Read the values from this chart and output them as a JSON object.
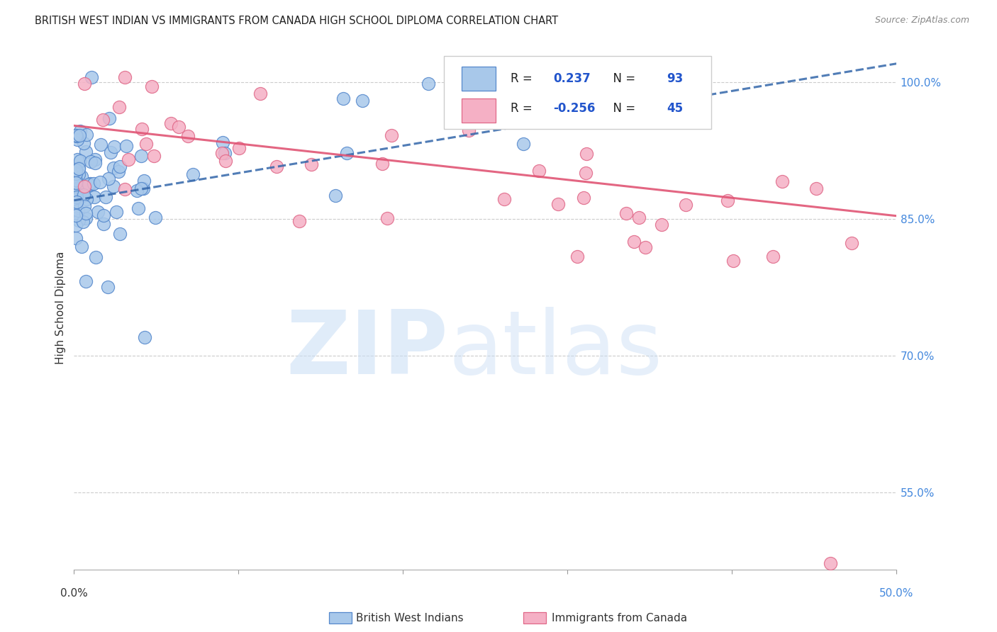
{
  "title": "BRITISH WEST INDIAN VS IMMIGRANTS FROM CANADA HIGH SCHOOL DIPLOMA CORRELATION CHART",
  "source": "Source: ZipAtlas.com",
  "ylabel": "High School Diploma",
  "ytick_vals": [
    1.0,
    0.85,
    0.7,
    0.55
  ],
  "ytick_labels": [
    "100.0%",
    "85.0%",
    "70.0%",
    "55.0%"
  ],
  "xlim": [
    0.0,
    0.5
  ],
  "ylim": [
    0.465,
    1.04
  ],
  "legend_blue_label": "British West Indians",
  "legend_pink_label": "Immigrants from Canada",
  "R_blue": "0.237",
  "N_blue": "93",
  "R_pink": "-0.256",
  "N_pink": "45",
  "blue_face": "#a8c8ea",
  "pink_face": "#f5b0c5",
  "blue_edge": "#5588cc",
  "pink_edge": "#e06888",
  "trend_blue_color": "#3366aa",
  "trend_pink_color": "#e05575",
  "grid_color": "#cccccc",
  "right_tick_color": "#4488dd",
  "watermark_zip_color": "#c8ddf5",
  "watermark_atlas_color": "#c8ddf5",
  "seed_blue": 42,
  "seed_pink": 7,
  "n_blue": 93,
  "n_pink": 45
}
